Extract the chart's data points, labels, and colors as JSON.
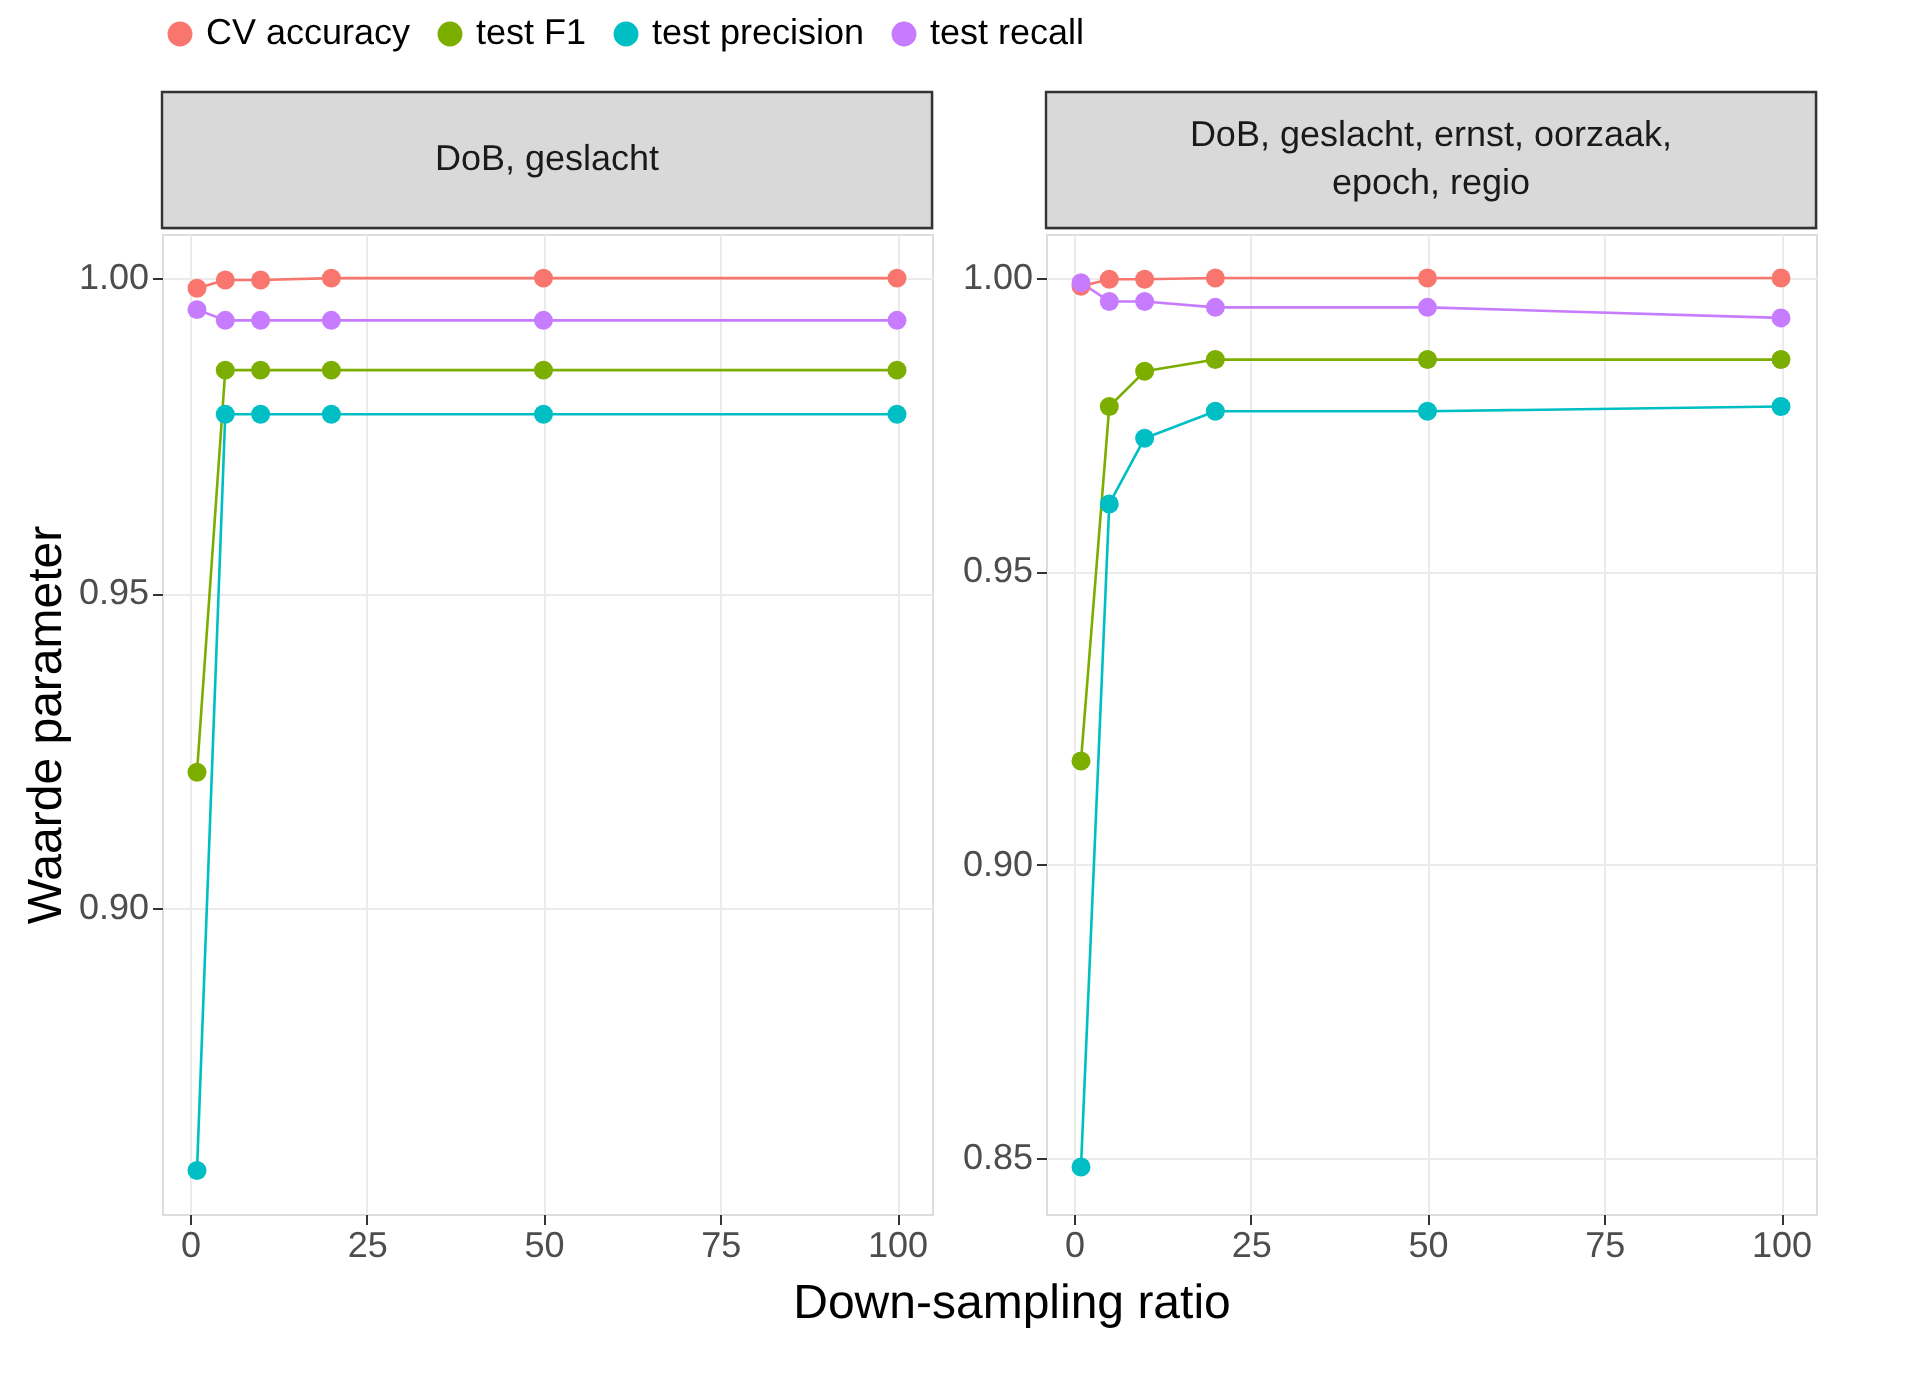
{
  "chart_data": [
    {
      "type": "line",
      "title": "DoB, geslacht",
      "xlabel": "Down-sampling ratio",
      "ylabel": "Waarde parameter",
      "legend": "top",
      "marker": "circle",
      "grid": true,
      "x": [
        1,
        5,
        10,
        20,
        50,
        100
      ],
      "xlim": [
        -3.95,
        104.95
      ],
      "xticks": [
        0,
        25,
        50,
        75,
        100
      ],
      "ylim": [
        0.8515,
        1.007
      ],
      "yticks": [
        {
          "value": 0.9,
          "label": "0.90"
        },
        {
          "value": 0.95,
          "label": "0.95"
        },
        {
          "value": 1.0,
          "label": "1.00"
        }
      ],
      "series": [
        {
          "name": "CV accuracy",
          "color": "#f8766d",
          "values": [
            0.9984,
            0.9997,
            0.9997,
            1.0,
            1.0,
            1.0
          ]
        },
        {
          "name": "test F1",
          "color": "#7cae00",
          "values": [
            0.9216,
            0.9854,
            0.9854,
            0.9854,
            0.9854,
            0.9854
          ]
        },
        {
          "name": "test precision",
          "color": "#00bfc4",
          "values": [
            0.8584,
            0.9784,
            0.9784,
            0.9784,
            0.9784,
            0.9784
          ]
        },
        {
          "name": "test recall",
          "color": "#c77cff",
          "values": [
            0.995,
            0.9933,
            0.9933,
            0.9933,
            0.9933,
            0.9933
          ]
        }
      ]
    },
    {
      "type": "line",
      "title": "DoB, geslacht, ernst, oorzaak,\nepoch, regio",
      "marker": "circle",
      "grid": true,
      "x": [
        1,
        5,
        10,
        20,
        50,
        100
      ],
      "xlim": [
        -3.95,
        104.95
      ],
      "xticks": [
        0,
        25,
        50,
        75,
        100
      ],
      "ylim": [
        0.8405,
        1.0075
      ],
      "yticks": [
        {
          "value": 0.85,
          "label": "0.85"
        },
        {
          "value": 0.9,
          "label": "0.90"
        },
        {
          "value": 0.95,
          "label": "0.95"
        },
        {
          "value": 1.0,
          "label": "1.00"
        }
      ],
      "series": [
        {
          "name": "CV accuracy",
          "color": "#f8766d",
          "values": [
            0.9986,
            0.9998,
            0.9998,
            1.0,
            1.0,
            1.0
          ]
        },
        {
          "name": "test F1",
          "color": "#7cae00",
          "values": [
            0.9177,
            0.9781,
            0.9841,
            0.9861,
            0.9861,
            0.9861
          ]
        },
        {
          "name": "test precision",
          "color": "#00bfc4",
          "values": [
            0.8485,
            0.9615,
            0.9727,
            0.9773,
            0.9773,
            0.9781
          ]
        },
        {
          "name": "test recall",
          "color": "#c77cff",
          "values": [
            0.9992,
            0.996,
            0.996,
            0.995,
            0.995,
            0.9932
          ]
        }
      ]
    }
  ]
}
